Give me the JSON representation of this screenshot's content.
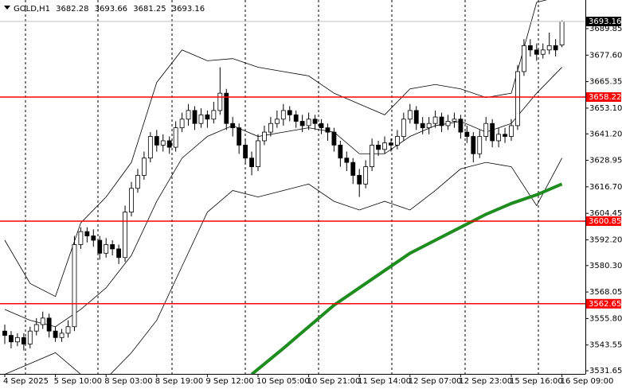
{
  "chart_data": {
    "type": "candlestick",
    "symbol": "GOLD,H1",
    "categories": [
      "4 Sep 2025",
      null,
      null,
      null,
      null,
      null,
      null,
      null,
      "5 Sep 10:00",
      null,
      null,
      null,
      null,
      null,
      null,
      null,
      "8 Sep 03:00",
      null,
      null,
      null,
      null,
      null,
      null,
      null,
      "8 Sep 19:00",
      null,
      null,
      null,
      null,
      null,
      null,
      null,
      "9 Sep 12:00",
      null,
      null,
      null,
      null,
      null,
      null,
      null,
      "10 Sep 05:00",
      null,
      null,
      null,
      null,
      null,
      null,
      null,
      "10 Sep 21:00",
      null,
      null,
      null,
      null,
      null,
      null,
      null,
      "11 Sep 14:00",
      null,
      null,
      null,
      null,
      null,
      null,
      null,
      "12 Sep 07:00",
      null,
      null,
      null,
      null,
      null,
      null,
      null,
      "12 Sep 23:00",
      null,
      null,
      null,
      null,
      null,
      null,
      null,
      "15 Sep 16:00",
      null,
      null,
      null,
      null,
      null,
      null,
      null,
      "16 Sep 09:00"
    ],
    "open": [
      3550,
      3548,
      3545,
      3547,
      3544,
      3550,
      3553,
      3556,
      3550,
      3547,
      3549,
      3552,
      3590,
      3596,
      3594,
      3592,
      3586,
      3590,
      3588,
      3584,
      3605,
      3616,
      3622,
      3630,
      3640,
      3636,
      3638,
      3635,
      3644,
      3648,
      3652,
      3646,
      3650,
      3648,
      3652,
      3660,
      3646,
      3644,
      3636,
      3630,
      3626,
      3638,
      3642,
      3646,
      3648,
      3652,
      3650,
      3647,
      3645,
      3648,
      3646,
      3644,
      3642,
      3636,
      3630,
      3628,
      3622,
      3618,
      3626,
      3636,
      3634,
      3637,
      3636,
      3640,
      3648,
      3652,
      3646,
      3644,
      3646,
      3649,
      3645,
      3647,
      3648,
      3642,
      3640,
      3632,
      3640,
      3646,
      3638,
      3641,
      3640,
      3645,
      3670,
      3682,
      3680,
      3678,
      3680,
      3682,
      3682.28
    ],
    "high": [
      3553,
      3550,
      3549,
      3549,
      3552,
      3556,
      3559,
      3558,
      3552,
      3551,
      3555,
      3594,
      3598,
      3598,
      3597,
      3594,
      3593,
      3592,
      3590,
      3608,
      3619,
      3625,
      3633,
      3642,
      3643,
      3641,
      3640,
      3647,
      3651,
      3655,
      3654,
      3653,
      3652,
      3656,
      3672,
      3662,
      3649,
      3646,
      3639,
      3633,
      3641,
      3645,
      3649,
      3652,
      3655,
      3654,
      3652,
      3650,
      3651,
      3650,
      3648,
      3646,
      3644,
      3638,
      3633,
      3630,
      3625,
      3629,
      3639,
      3638,
      3640,
      3639,
      3643,
      3651,
      3655,
      3654,
      3649,
      3649,
      3652,
      3651,
      3650,
      3651,
      3650,
      3645,
      3642,
      3643,
      3649,
      3648,
      3644,
      3644,
      3648,
      3673,
      3685,
      3685,
      3683,
      3683,
      3688,
      3685,
      3693.66
    ],
    "low": [
      3544,
      3542,
      3543,
      3541,
      3542,
      3548,
      3551,
      3547,
      3545,
      3545,
      3547,
      3550,
      3588,
      3591,
      3589,
      3583,
      3584,
      3585,
      3581,
      3582,
      3603,
      3614,
      3620,
      3628,
      3633,
      3633,
      3632,
      3633,
      3642,
      3645,
      3643,
      3644,
      3644,
      3646,
      3650,
      3643,
      3640,
      3632,
      3627,
      3622,
      3624,
      3636,
      3640,
      3644,
      3645,
      3647,
      3644,
      3642,
      3643,
      3643,
      3641,
      3638,
      3633,
      3626,
      3624,
      3618,
      3612,
      3616,
      3624,
      3631,
      3632,
      3633,
      3634,
      3638,
      3646,
      3643,
      3641,
      3641,
      3644,
      3642,
      3643,
      3644,
      3639,
      3637,
      3628,
      3630,
      3638,
      3635,
      3635,
      3637,
      3638,
      3643,
      3668,
      3677,
      3675,
      3676,
      3678,
      3677,
      3681.25
    ],
    "close": [
      3548,
      3545,
      3547,
      3544,
      3550,
      3553,
      3556,
      3550,
      3547,
      3549,
      3552,
      3590,
      3596,
      3594,
      3592,
      3586,
      3590,
      3588,
      3584,
      3605,
      3616,
      3622,
      3630,
      3640,
      3636,
      3638,
      3635,
      3644,
      3648,
      3652,
      3646,
      3650,
      3648,
      3652,
      3660,
      3646,
      3644,
      3636,
      3630,
      3626,
      3638,
      3642,
      3646,
      3648,
      3652,
      3650,
      3647,
      3645,
      3648,
      3646,
      3644,
      3642,
      3636,
      3630,
      3628,
      3622,
      3618,
      3626,
      3636,
      3634,
      3637,
      3636,
      3640,
      3648,
      3652,
      3646,
      3644,
      3646,
      3649,
      3645,
      3647,
      3648,
      3642,
      3640,
      3632,
      3640,
      3646,
      3638,
      3641,
      3640,
      3645,
      3670,
      3682,
      3680,
      3678,
      3680,
      3682,
      3680,
      3693.16
    ],
    "bull_color": "#ffffff",
    "bear_color": "#000000",
    "outline_color": "#000000",
    "ylim": [
      3530.2,
      3703.1
    ],
    "yticks": [
      3689.85,
      {
        "value": 3677.6,
        "label": "3677.60"
      },
      3665.35,
      {
        "value": 3653.1,
        "label": "3653.10"
      },
      {
        "value": 3641.2,
        "label": "3641.20"
      },
      3628.95,
      {
        "value": 3616.7,
        "label": "3616.70"
      },
      3604.45,
      {
        "value": 3592.2,
        "label": "3592.20"
      },
      {
        "value": 3580.3,
        "label": "3580.30"
      },
      3568.05,
      {
        "value": 3555.8,
        "label": "3555.80"
      },
      3543.55,
      3531.65
    ],
    "levels": [
      {
        "value": 3658.22,
        "color": "#ff0000"
      },
      {
        "value": 3600.85,
        "color": "#ff0000"
      },
      {
        "value": 3562.65,
        "color": "#ff0000"
      }
    ],
    "bands": {
      "color": "#000000",
      "x": [
        0,
        4,
        8,
        12,
        16,
        20,
        24,
        28,
        32,
        36,
        40,
        44,
        48,
        52,
        56,
        60,
        64,
        68,
        72,
        76,
        80,
        84,
        88
      ],
      "upper": [
        3592,
        3572,
        3566,
        3600,
        3612,
        3628,
        3665,
        3680,
        3675,
        3676,
        3672,
        3670,
        3668,
        3660,
        3655,
        3650,
        3662,
        3664,
        3662,
        3658,
        3660,
        3702,
        3705
      ],
      "middle": [
        3560,
        3555,
        3552,
        3560,
        3570,
        3585,
        3610,
        3630,
        3640,
        3645,
        3640,
        3642,
        3644,
        3642,
        3632,
        3632,
        3640,
        3645,
        3647,
        3642,
        3646,
        3660,
        3672
      ],
      "lower": [
        3530,
        3535,
        3540,
        3530,
        3528,
        3540,
        3555,
        3580,
        3605,
        3615,
        3612,
        3615,
        3618,
        3610,
        3606,
        3610,
        3606,
        3615,
        3625,
        3628,
        3626,
        3608,
        3630
      ]
    },
    "moving_average": {
      "color": "#1e8c1e",
      "x": [
        39,
        44,
        48,
        52,
        56,
        60,
        64,
        68,
        72,
        76,
        80,
        84,
        88
      ],
      "values": [
        3530,
        3542,
        3552,
        3562,
        3570,
        3578,
        3586,
        3592,
        3598,
        3604,
        3609,
        3613,
        3618
      ]
    }
  }
}
